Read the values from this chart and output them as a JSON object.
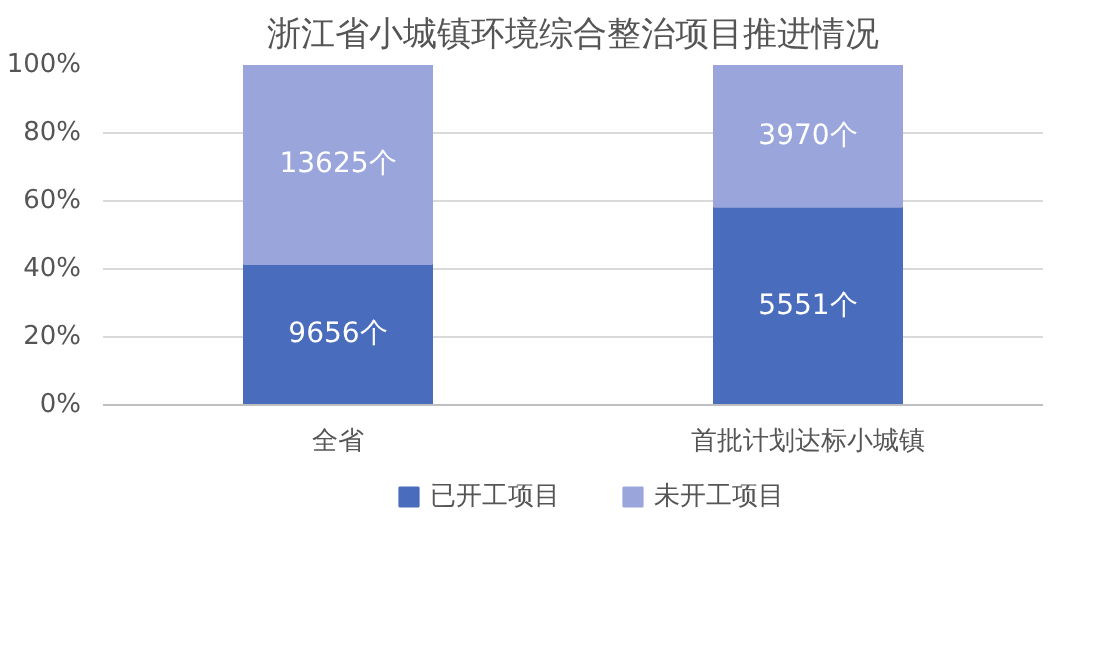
{
  "chart_data": {
    "type": "bar",
    "title": "浙江省小城镇环境综合整治项目推进情况",
    "categories": [
      "全省",
      "首批计划达标小城镇"
    ],
    "stacked": true,
    "series": [
      {
        "name": "已开工项目",
        "color": "#4a6cbd",
        "values": [
          41.5,
          58.3
        ]
      },
      {
        "name": "未开工项目",
        "color": "#9aa5dc",
        "values": [
          58.5,
          41.7
        ]
      }
    ],
    "annotations": [
      "9656个",
      "5551个",
      "13625个",
      "3970个"
    ],
    "ylim": [
      0,
      100
    ],
    "yticks": [
      {
        "value": 0,
        "label": "0%"
      },
      {
        "value": 20,
        "label": "20%"
      },
      {
        "value": 40,
        "label": "40%"
      },
      {
        "value": 60,
        "label": "60%"
      },
      {
        "value": 80,
        "label": "80%"
      },
      {
        "value": 100,
        "label": "100%"
      }
    ],
    "grid": "y",
    "legend": "bottom"
  }
}
